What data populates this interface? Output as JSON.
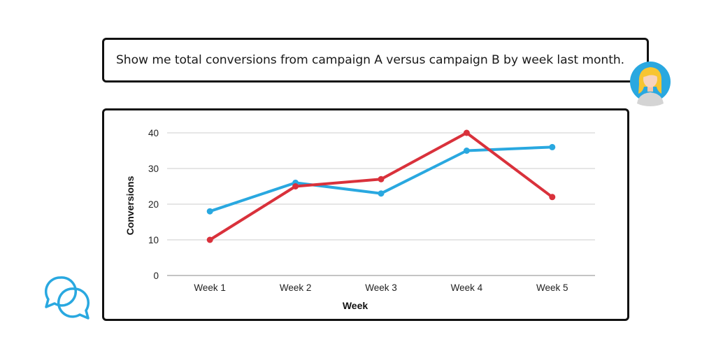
{
  "prompt": {
    "text": "Show me total conversions from campaign A versus campaign B by week last month."
  },
  "icons": {
    "user_avatar": "user-avatar-icon",
    "chat": "chat-bubbles-icon"
  },
  "colors": {
    "series_a": "#29a8e0",
    "series_b": "#d9313b",
    "avatar_bg": "#29a8e0",
    "chat_icon": "#29a8e0"
  },
  "chart_data": {
    "type": "line",
    "categories": [
      "Week 1",
      "Week 2",
      "Week 3",
      "Week 4",
      "Week 5"
    ],
    "series": [
      {
        "values": [
          18,
          26,
          23,
          35,
          36
        ],
        "color": "#29a8e0"
      },
      {
        "values": [
          10,
          25,
          27,
          40,
          22
        ],
        "color": "#d9313b"
      }
    ],
    "xlabel": "Week",
    "ylabel": "Conversions",
    "ylim": [
      0,
      40
    ],
    "yticks": [
      0,
      10,
      20,
      30,
      40
    ],
    "grid": true,
    "legend": "none"
  }
}
